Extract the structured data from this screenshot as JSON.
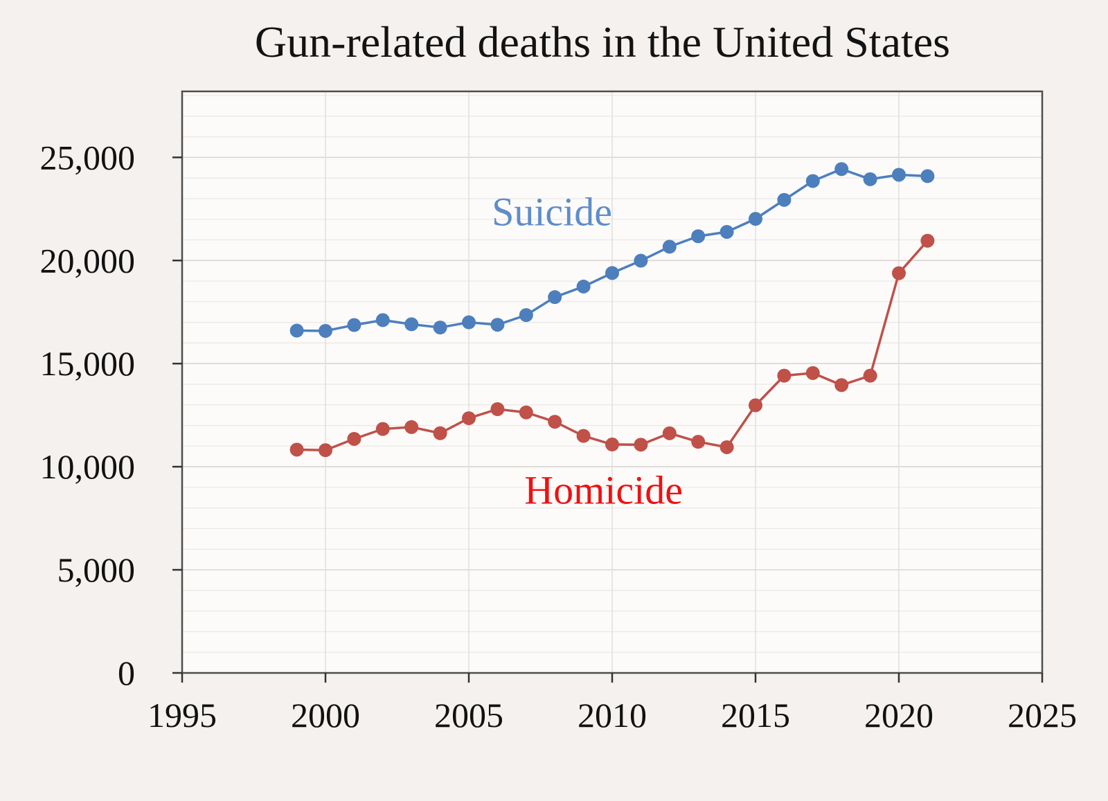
{
  "title": "Gun-related deaths in the United States",
  "colors": {
    "page_background": "#f4f1ee",
    "plot_background": "#fcfbfa",
    "suicide_line": "#4d7fbd",
    "homicide_line": "#bf5149",
    "suicide_label": "#5f8dc9",
    "homicide_label": "#ee1111",
    "axis": "#4d4d4d"
  },
  "chart_data": {
    "type": "line",
    "title": "Gun-related deaths in the United States",
    "xlabel": "",
    "ylabel": "",
    "xlim": [
      1995,
      2025
    ],
    "ylim": [
      0,
      28200
    ],
    "grid": "on",
    "y_minor_step": 1000,
    "y_major_step": 5000,
    "x_ticks": [
      1995,
      2000,
      2005,
      2010,
      2015,
      2020,
      2025
    ],
    "x_tick_labels": [
      "1995",
      "2000",
      "2005",
      "2010",
      "2015",
      "2020",
      "2025"
    ],
    "y_ticks": [
      0,
      5000,
      10000,
      15000,
      20000,
      25000
    ],
    "y_tick_labels": [
      "0",
      "5,000",
      "10,000",
      "15,000",
      "20,000",
      "25,000"
    ],
    "x": [
      1999,
      2000,
      2001,
      2002,
      2003,
      2004,
      2005,
      2006,
      2007,
      2008,
      2009,
      2010,
      2011,
      2012,
      2013,
      2014,
      2015,
      2016,
      2017,
      2018,
      2019,
      2020,
      2021
    ],
    "series": [
      {
        "name": "Suicide",
        "color": "#4d7fbd",
        "values": [
          16599,
          16586,
          16869,
          17108,
          16907,
          16750,
          17002,
          16883,
          17352,
          18223,
          18735,
          19392,
          19990,
          20666,
          21175,
          21386,
          22018,
          22938,
          23854,
          24432,
          23941,
          24156,
          24090
        ]
      },
      {
        "name": "Homicide",
        "color": "#bf5149",
        "values": [
          10828,
          10801,
          11348,
          11829,
          11920,
          11624,
          12352,
          12791,
          12632,
          12179,
          11493,
          11078,
          11068,
          11622,
          11208,
          10945,
          12979,
          14415,
          14542,
          13958,
          14414,
          19384,
          20958
        ]
      }
    ],
    "annotations": [
      {
        "text": "Suicide",
        "x": 2007.9,
        "y": 21700,
        "color": "#5f8dc9"
      },
      {
        "text": "Homicide",
        "x": 2009.7,
        "y": 8200,
        "color": "#ee1111"
      }
    ],
    "legend_position": "inline-annotations"
  }
}
